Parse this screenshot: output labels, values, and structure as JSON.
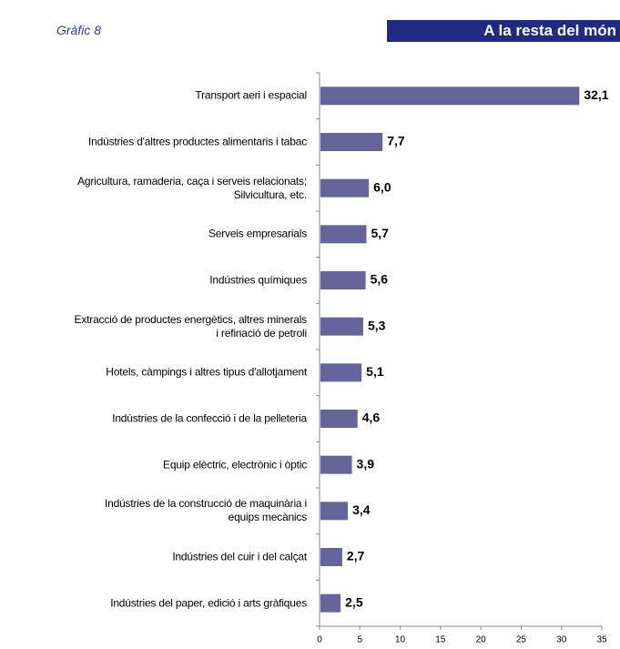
{
  "chart_data": {
    "type": "bar",
    "orientation": "horizontal",
    "subtitle": "Gràfic 8",
    "title": "A la resta del món",
    "categories": [
      [
        "Transport aeri i espacial"
      ],
      [
        "Indústries d'altres productes alimentaris i tabac"
      ],
      [
        "Agricultura, ramaderia, caça i serveis relacionats;",
        "Silvicultura, etc."
      ],
      [
        "Serveis empresarials"
      ],
      [
        "Indústries químiques"
      ],
      [
        "Extracció de productes energètics, altres minerals",
        "i refinació de petroli"
      ],
      [
        "Hotels, càmpings i altres tipus d'allotjament"
      ],
      [
        "Indústries de la confecció i de la pelleteria"
      ],
      [
        "Equip elèctric, electrònic i òptic"
      ],
      [
        "Indústries de la construcció de maquinària i",
        "equips mecànics"
      ],
      [
        "Indústries del cuir i del calçat"
      ],
      [
        "Indústries del paper, edició i arts gràfiques"
      ]
    ],
    "values": [
      32.1,
      7.7,
      6.0,
      5.7,
      5.6,
      5.3,
      5.1,
      4.6,
      3.9,
      3.4,
      2.7,
      2.5
    ],
    "value_labels": [
      "32,1",
      "7,7",
      "6,0",
      "5,7",
      "5,6",
      "5,3",
      "5,1",
      "4,6",
      "3,9",
      "3,4",
      "2,7",
      "2,5"
    ],
    "color": "#65659b",
    "xlim": [
      0,
      35
    ],
    "xticks": [
      0,
      5,
      10,
      15,
      20,
      25,
      30,
      35
    ]
  }
}
